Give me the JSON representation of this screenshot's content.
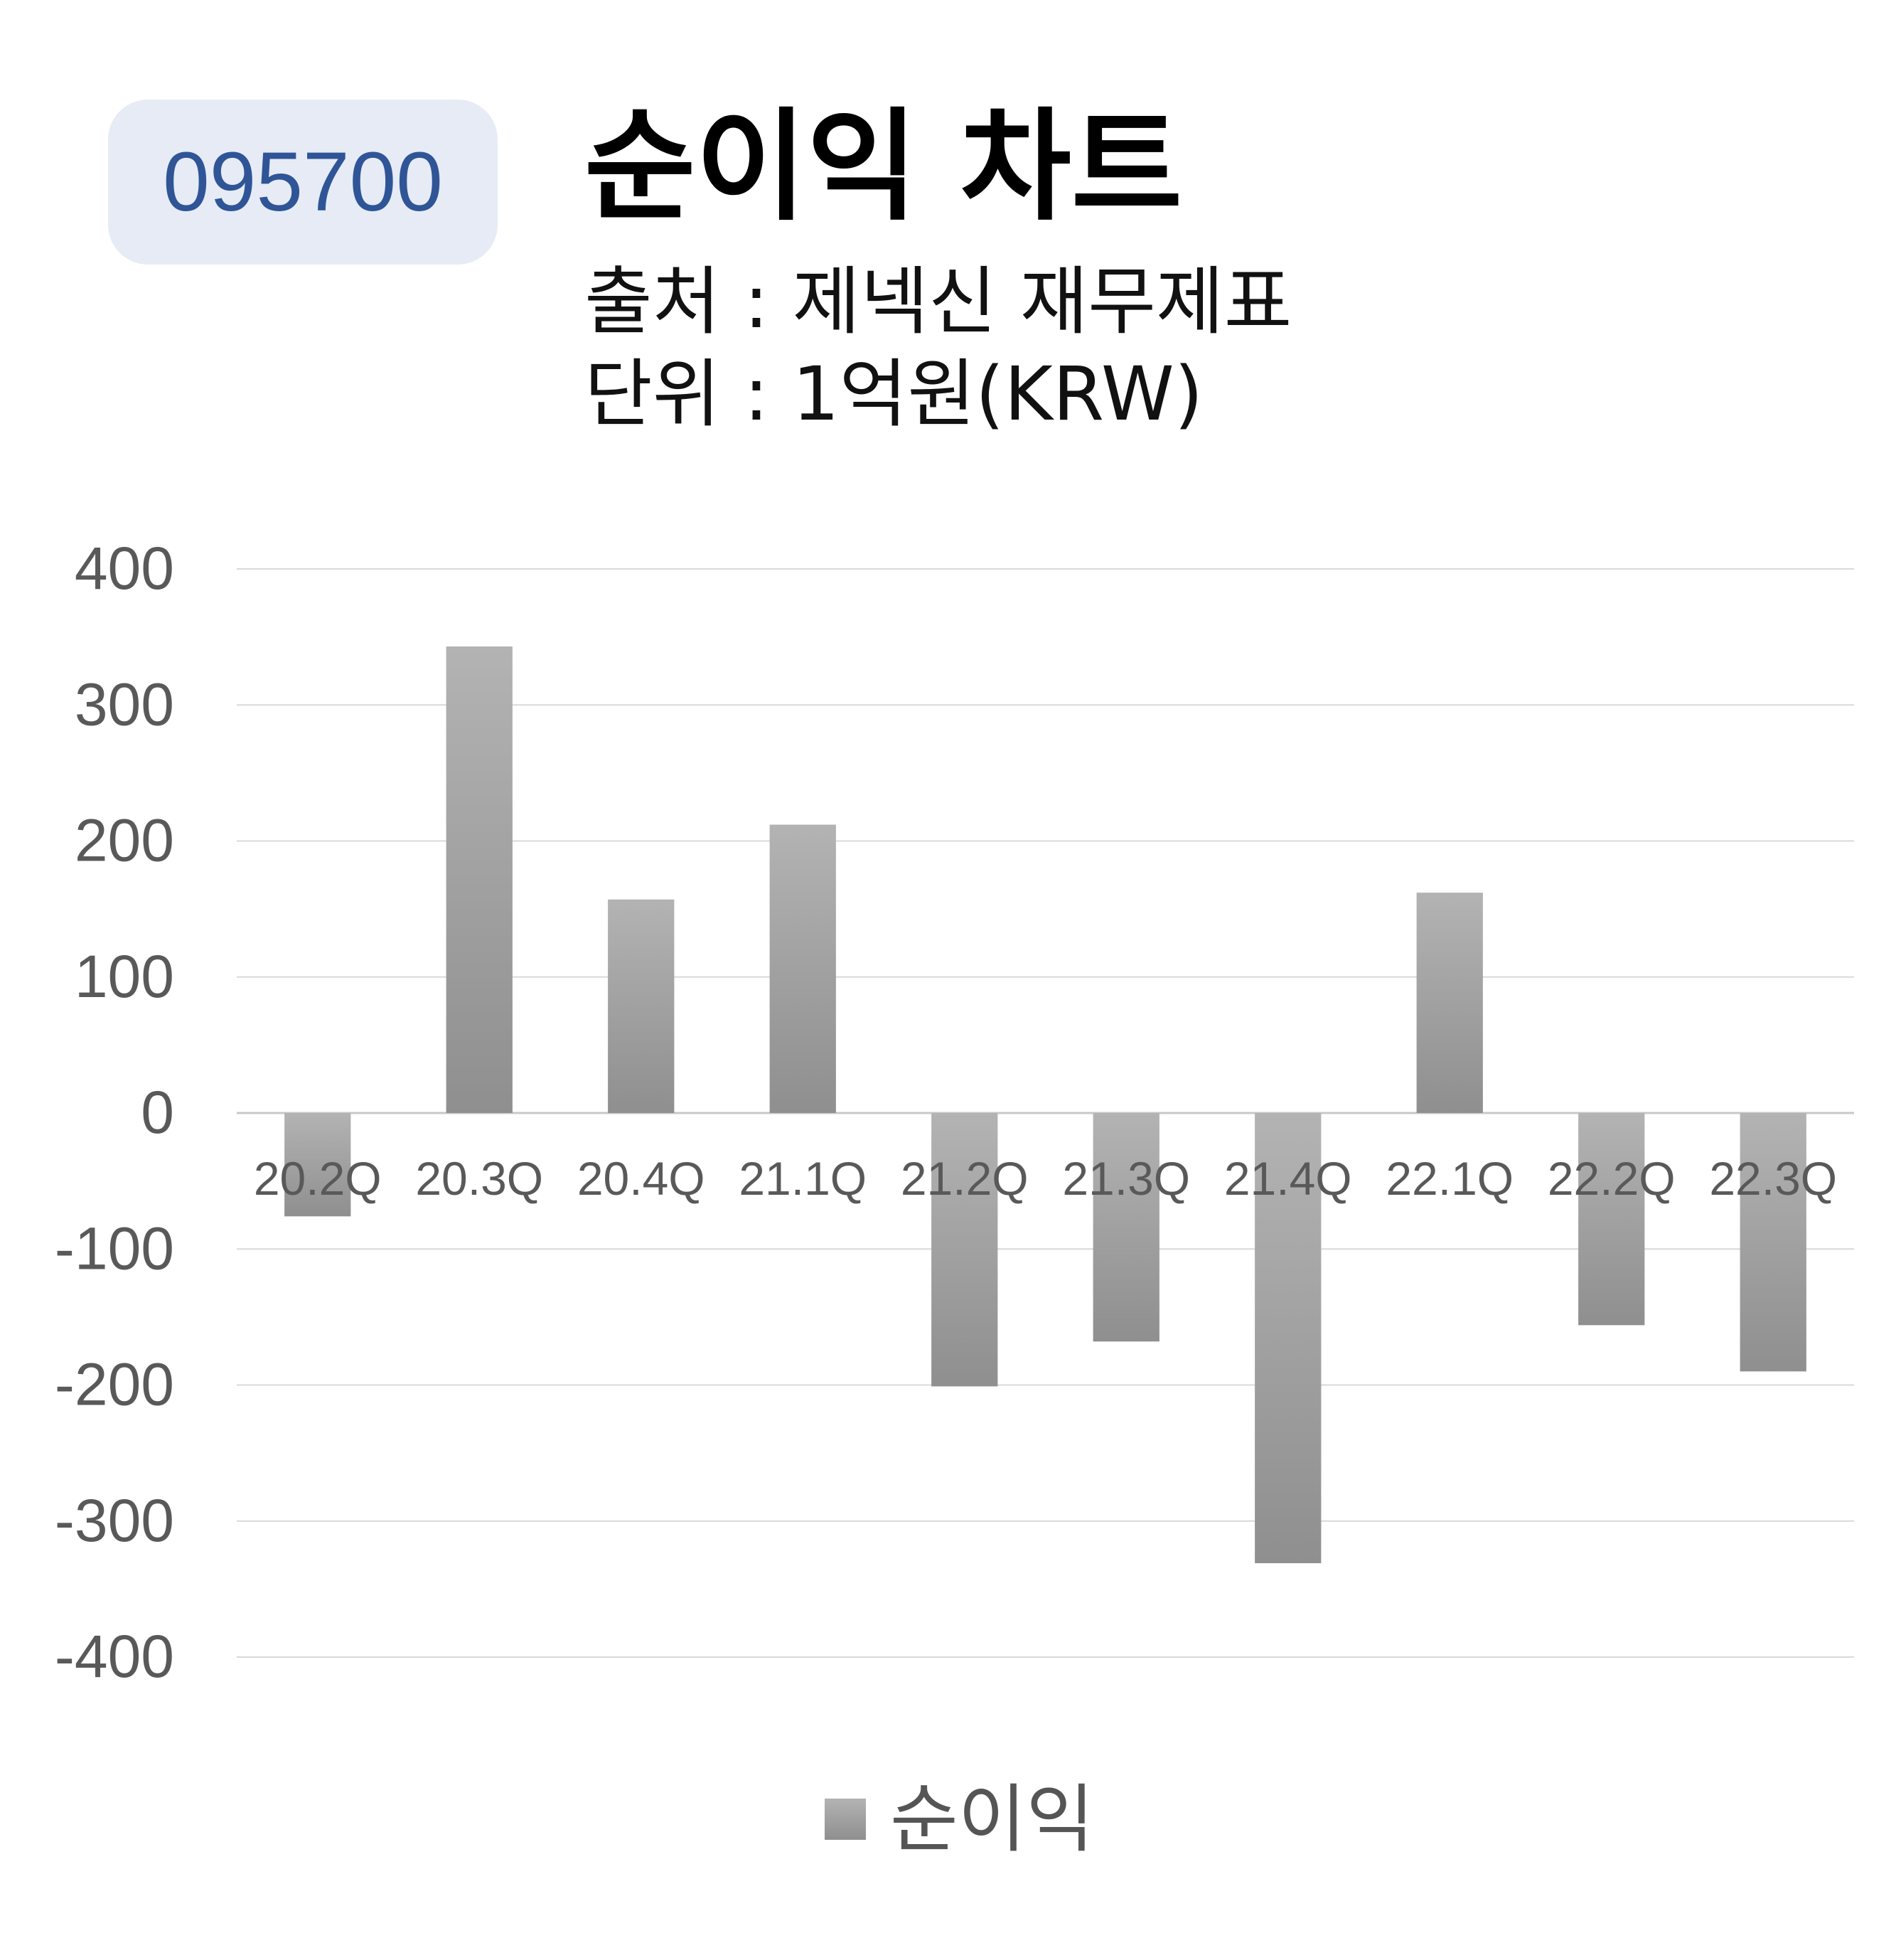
{
  "header": {
    "ticker": "095700",
    "title": "순이익 차트",
    "source": "출처 : 제넥신 재무제표",
    "unit": "단위 : 1억원(KRW)"
  },
  "colors": {
    "ticker_bg": "#e6ebf5",
    "ticker_text": "#2f5597",
    "bar_top": "#b3b3b3",
    "bar_bottom": "#8f8f8f",
    "gridline": "#d9d9d9",
    "tick_text": "#595959"
  },
  "chart_data": {
    "type": "bar",
    "title": "",
    "xlabel": "",
    "ylabel": "",
    "ylim": [
      -400,
      400
    ],
    "yticks": [
      400,
      300,
      200,
      100,
      0,
      -100,
      -200,
      -300,
      -400
    ],
    "ytick_labels": [
      "400",
      "300",
      "200",
      "100",
      "0",
      "-100",
      "-200",
      "-300",
      "-400"
    ],
    "grid": true,
    "legend_position": "bottom",
    "categories": [
      "20.2Q",
      "20.3Q",
      "20.4Q",
      "21.1Q",
      "21.2Q",
      "21.3Q",
      "21.4Q",
      "22.1Q",
      "22.2Q",
      "22.3Q"
    ],
    "series": [
      {
        "name": "순이익",
        "values": [
          -76,
          343,
          157,
          212,
          -201,
          -168,
          -331,
          162,
          -156,
          -190
        ]
      }
    ]
  }
}
